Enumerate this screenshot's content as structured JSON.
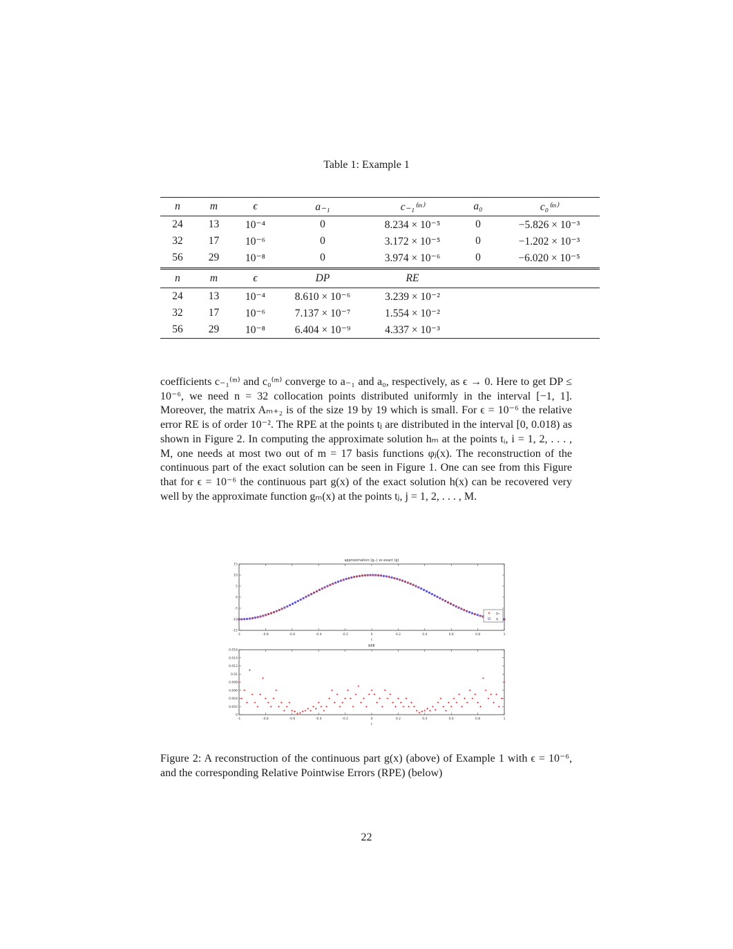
{
  "table": {
    "caption": "Table 1: Example 1",
    "header1": [
      "n",
      "m",
      "ϵ",
      "a₋₁",
      "c₋₁⁽ᵐ⁾",
      "a₀",
      "c₀⁽ᵐ⁾"
    ],
    "rows1": [
      [
        "24",
        "13",
        "10⁻⁴",
        "0",
        "8.234 × 10⁻⁵",
        "0",
        "−5.826 × 10⁻³"
      ],
      [
        "32",
        "17",
        "10⁻⁶",
        "0",
        "3.172 × 10⁻⁵",
        "0",
        "−1.202 × 10⁻³"
      ],
      [
        "56",
        "29",
        "10⁻⁸",
        "0",
        "3.974 × 10⁻⁶",
        "0",
        "−6.020 × 10⁻⁵"
      ]
    ],
    "header2": [
      "n",
      "m",
      "ϵ",
      "DP",
      "RE"
    ],
    "rows2": [
      [
        "24",
        "13",
        "10⁻⁴",
        "8.610 × 10⁻⁶",
        "3.239 × 10⁻²"
      ],
      [
        "32",
        "17",
        "10⁻⁶",
        "7.137 × 10⁻⁷",
        "1.554 × 10⁻²"
      ],
      [
        "56",
        "29",
        "10⁻⁸",
        "6.404 × 10⁻⁹",
        "4.337 × 10⁻³"
      ]
    ]
  },
  "paragraph": "coefficients c₋₁⁽ᵐ⁾ and c₀⁽ᵐ⁾ converge to a₋₁ and a₀, respectively, as ϵ → 0. Here to get DP ≤ 10⁻⁶, we need n = 32 collocation points distributed uniformly in the interval [−1, 1]. Moreover, the matrix Aₘ₊₂ is of the size 19 by 19 which is small. For ϵ = 10⁻⁶ the relative error RE is of order 10⁻². The RPE at the points tⱼ are distributed in the interval [0, 0.018) as shown in Figure 2. In computing the approximate solution hₘ at the points tᵢ, i = 1, 2, . . . , M, one needs at most two out of m = 17 basis functions φⱼ(x). The reconstruction of the continuous part of the exact solution can be seen in Figure 1. One can see from this Figure that for ϵ = 10⁻⁶ the continuous part g(x) of the exact solution h(x) can be recovered very well by the approximate function gₘ(x) at the points tⱼ, j = 1, 2, . . . , M.",
  "figure": {
    "caption": "Figure 2: A reconstruction of the continuous part g(x) (above) of Example 1 with ϵ = 10⁻⁶, and the corresponding Relative Pointwise Errors (RPE) (below)"
  },
  "page_number": "22",
  "chart_data": [
    {
      "type": "scatter",
      "title": "approximation (gₘ) vs exact (g)",
      "xlabel": "t",
      "ylabel": "",
      "xlim": [
        -1,
        1
      ],
      "ylim": [
        -15,
        15
      ],
      "xticks": [
        "-1",
        "-0.8",
        "-0.6",
        "-0.4",
        "-0.2",
        "0",
        "0.2",
        "0.4",
        "0.6",
        "0.8",
        "1"
      ],
      "yticks": [
        "15",
        "10",
        "5",
        "0",
        "-5",
        "-10",
        "-15"
      ],
      "legend": [
        "gₘ",
        "g"
      ],
      "legend_position": "right",
      "series": [
        {
          "name": "gₘ",
          "marker": "+",
          "color": "#d62728",
          "function": "10·cos(πt)",
          "n_points": 100
        },
        {
          "name": "g",
          "marker": "o",
          "color": "#3b3bd0",
          "function": "10·cos(πt)",
          "n_points": 100
        }
      ]
    },
    {
      "type": "scatter",
      "title": "RPE",
      "xlabel": "t",
      "ylabel": "",
      "xlim": [
        -1,
        1
      ],
      "ylim": [
        0,
        0.016
      ],
      "xticks": [
        "-1",
        "-0.8",
        "-0.6",
        "-0.4",
        "-0.2",
        "0",
        "0.2",
        "0.4",
        "0.6",
        "0.8",
        "1"
      ],
      "yticks": [
        "0.016",
        "0.014",
        "0.012",
        "0.01",
        "0.008",
        "0.006",
        "0.004",
        "0.002",
        "0"
      ],
      "marker": "+",
      "color": "#d62728",
      "x": [
        -1.0,
        -0.98,
        -0.96,
        -0.94,
        -0.92,
        -0.9,
        -0.88,
        -0.86,
        -0.84,
        -0.82,
        -0.8,
        -0.78,
        -0.76,
        -0.74,
        -0.72,
        -0.7,
        -0.68,
        -0.66,
        -0.64,
        -0.62,
        -0.6,
        -0.58,
        -0.56,
        -0.54,
        -0.52,
        -0.5,
        -0.48,
        -0.46,
        -0.44,
        -0.42,
        -0.4,
        -0.38,
        -0.36,
        -0.34,
        -0.32,
        -0.3,
        -0.28,
        -0.26,
        -0.24,
        -0.22,
        -0.2,
        -0.18,
        -0.16,
        -0.14,
        -0.12,
        -0.1,
        -0.08,
        -0.06,
        -0.04,
        -0.02,
        0.0,
        0.02,
        0.04,
        0.06,
        0.08,
        0.1,
        0.12,
        0.14,
        0.16,
        0.18,
        0.2,
        0.22,
        0.24,
        0.26,
        0.28,
        0.3,
        0.32,
        0.34,
        0.36,
        0.38,
        0.4,
        0.42,
        0.44,
        0.46,
        0.48,
        0.5,
        0.52,
        0.54,
        0.56,
        0.58,
        0.6,
        0.62,
        0.64,
        0.66,
        0.68,
        0.7,
        0.72,
        0.74,
        0.76,
        0.78,
        0.8,
        0.82,
        0.84,
        0.86,
        0.88,
        0.9,
        0.92,
        0.94,
        0.96,
        0.98,
        1.0
      ],
      "y": [
        0.008,
        0.004,
        0.006,
        0.003,
        0.011,
        0.005,
        0.003,
        0.002,
        0.005,
        0.009,
        0.004,
        0.003,
        0.002,
        0.004,
        0.006,
        0.002,
        0.003,
        0.001,
        0.002,
        0.003,
        0.001,
        0.0008,
        0.0003,
        0.0004,
        0.0008,
        0.001,
        0.0015,
        0.001,
        0.002,
        0.0015,
        0.003,
        0.002,
        0.001,
        0.002,
        0.004,
        0.006,
        0.003,
        0.005,
        0.002,
        0.003,
        0.004,
        0.006,
        0.004,
        0.002,
        0.005,
        0.007,
        0.003,
        0.004,
        0.002,
        0.005,
        0.006,
        0.005,
        0.003,
        0.004,
        0.002,
        0.006,
        0.004,
        0.005,
        0.003,
        0.002,
        0.004,
        0.003,
        0.002,
        0.004,
        0.002,
        0.003,
        0.002,
        0.001,
        0.0005,
        0.0008,
        0.001,
        0.0015,
        0.001,
        0.002,
        0.0012,
        0.003,
        0.004,
        0.002,
        0.001,
        0.003,
        0.002,
        0.004,
        0.003,
        0.005,
        0.002,
        0.004,
        0.003,
        0.006,
        0.004,
        0.005,
        0.003,
        0.002,
        0.009,
        0.006,
        0.004,
        0.005,
        0.003,
        0.005,
        0.002,
        0.004,
        0.008
      ]
    }
  ]
}
